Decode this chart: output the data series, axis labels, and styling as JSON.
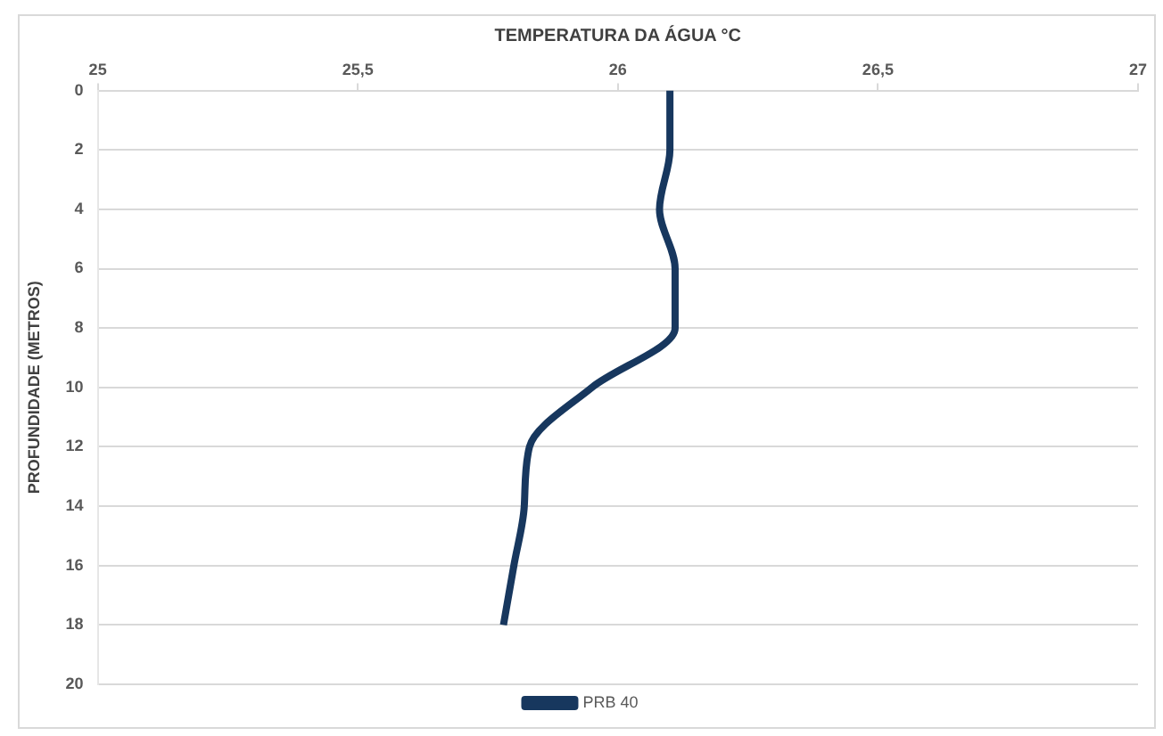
{
  "chart_data": {
    "type": "line",
    "xlabel": "TEMPERATURA DA ÁGUA °C",
    "ylabel": "PROFUNDIDADE (METROS)",
    "series": [
      {
        "name": "PRB 40",
        "color": "#17375e",
        "x": [
          26.1,
          26.1,
          26.08,
          26.11,
          26.11,
          25.95,
          25.83,
          25.82,
          25.8,
          25.78
        ],
        "values": [
          0,
          2,
          4,
          6,
          8,
          10,
          12,
          14,
          16,
          18
        ]
      }
    ],
    "xlim": [
      25,
      27
    ],
    "xticks": [
      25,
      {
        "value": 25.5,
        "label": "25,5"
      },
      26,
      {
        "value": 26.5,
        "label": "26,5"
      },
      27
    ],
    "ylim": [
      20,
      0
    ],
    "yticks": [
      0,
      2,
      4,
      6,
      8,
      10,
      12,
      14,
      16,
      18,
      20
    ],
    "grid": "y",
    "legend": "bottom",
    "marker": "none",
    "line_style": "solid"
  }
}
